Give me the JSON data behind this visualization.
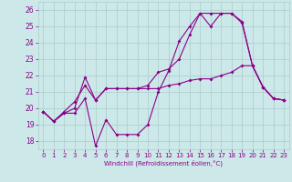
{
  "xlabel": "Windchill (Refroidissement éolien,°C)",
  "background_color": "#cce8e8",
  "grid_color": "#aacccc",
  "line_color": "#8b008b",
  "xlim": [
    -0.5,
    23.5
  ],
  "ylim": [
    17.5,
    26.5
  ],
  "yticks": [
    18,
    19,
    20,
    21,
    22,
    23,
    24,
    25,
    26
  ],
  "xticks": [
    0,
    1,
    2,
    3,
    4,
    5,
    6,
    7,
    8,
    9,
    10,
    11,
    12,
    13,
    14,
    15,
    16,
    17,
    18,
    19,
    20,
    21,
    22,
    23
  ],
  "series1_x": [
    0,
    1,
    2,
    3,
    4,
    5,
    6,
    7,
    8,
    9,
    10,
    11,
    12,
    13,
    14,
    15,
    16,
    17,
    18,
    19,
    20,
    21,
    22,
    23
  ],
  "series1_y": [
    19.8,
    19.2,
    19.7,
    19.7,
    20.6,
    17.7,
    19.3,
    18.4,
    18.4,
    18.4,
    19.0,
    21.0,
    22.3,
    24.1,
    25.0,
    25.8,
    25.8,
    25.8,
    25.8,
    25.2,
    22.6,
    21.3,
    20.6,
    20.5
  ],
  "series2_x": [
    0,
    1,
    2,
    3,
    4,
    5,
    6,
    7,
    8,
    9,
    10,
    11,
    12,
    13,
    14,
    15,
    16,
    17,
    18,
    19,
    20,
    21,
    22,
    23
  ],
  "series2_y": [
    19.8,
    19.2,
    19.7,
    20.0,
    21.9,
    20.5,
    21.2,
    21.2,
    21.2,
    21.2,
    21.2,
    21.2,
    21.4,
    21.5,
    21.7,
    21.8,
    21.8,
    22.0,
    22.2,
    22.6,
    22.6,
    21.3,
    20.6,
    20.5
  ],
  "series3_x": [
    0,
    1,
    2,
    3,
    4,
    5,
    6,
    7,
    8,
    9,
    10,
    11,
    12,
    13,
    14,
    15,
    16,
    17,
    18,
    19,
    20,
    21,
    22,
    23
  ],
  "series3_y": [
    19.8,
    19.2,
    19.8,
    20.4,
    21.4,
    20.5,
    21.2,
    21.2,
    21.2,
    21.2,
    21.4,
    22.2,
    22.4,
    23.0,
    24.5,
    25.8,
    25.0,
    25.8,
    25.8,
    25.3,
    22.6,
    21.3,
    20.6,
    20.5
  ]
}
